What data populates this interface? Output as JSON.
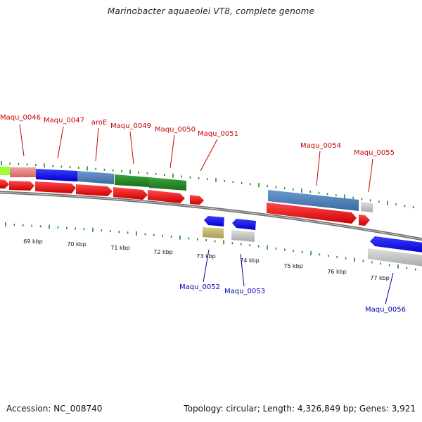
{
  "title": "Marinobacter aquaeolei VT8, complete genome",
  "footer": {
    "accession": "Accession: NC_008740",
    "info": "Topology: circular; Length: 4,326,849 bp; Genes: 3,921"
  },
  "ticks": [
    {
      "label": "69 kbp"
    },
    {
      "label": "70 kbp"
    },
    {
      "label": "71 kbp"
    },
    {
      "label": "72 kbp"
    },
    {
      "label": "73 kbp"
    },
    {
      "label": "74 kbp"
    },
    {
      "label": "75 kbp"
    },
    {
      "label": "76 kbp"
    },
    {
      "label": "77 kbp"
    }
  ],
  "gene_labels": [
    {
      "text": "Maqu_0046",
      "strand": "forward"
    },
    {
      "text": "Maqu_0047",
      "strand": "forward"
    },
    {
      "text": "aroE",
      "strand": "forward"
    },
    {
      "text": "Maqu_0049",
      "strand": "forward"
    },
    {
      "text": "Maqu_0050",
      "strand": "forward"
    },
    {
      "text": "Maqu_0051",
      "strand": "forward"
    },
    {
      "text": "Maqu_0054",
      "strand": "forward"
    },
    {
      "text": "Maqu_0055",
      "strand": "forward"
    },
    {
      "text": "Maqu_0052",
      "strand": "reverse"
    },
    {
      "text": "Maqu_0053",
      "strand": "reverse"
    },
    {
      "text": "Maqu_0056",
      "strand": "reverse"
    }
  ],
  "colors": {
    "forward_label": "#cc0000",
    "reverse_label": "#0000aa",
    "tick": "#228b22",
    "backbone": "#888888",
    "cds": "#ff0000",
    "cog_blue": "#0000ff",
    "cog_steelblue": "#4f81bd",
    "cog_green": "#228b22",
    "cog_salmon": "#f08080",
    "cog_gray": "#c0c0c0",
    "cog_olive": "#bdb76b",
    "cog_lime": "#99ff33",
    "cog_magenta": "#cc33cc"
  }
}
